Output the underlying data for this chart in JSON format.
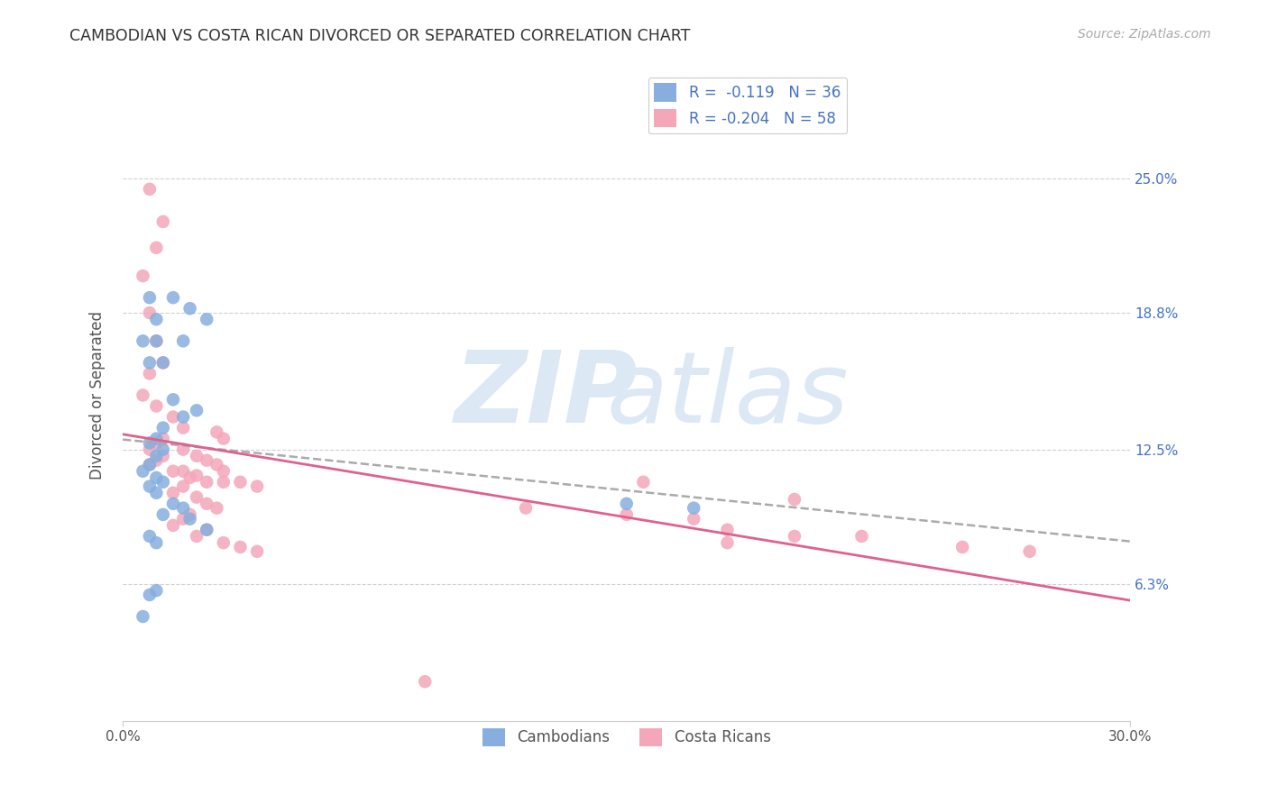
{
  "title": "CAMBODIAN VS COSTA RICAN DIVORCED OR SEPARATED CORRELATION CHART",
  "source": "Source: ZipAtlas.com",
  "ylabel": "Divorced or Separated",
  "xlim": [
    0.0,
    0.3
  ],
  "ylim": [
    0.0,
    0.3
  ],
  "ytick_labels": [
    "6.3%",
    "12.5%",
    "18.8%",
    "25.0%"
  ],
  "ytick_vals": [
    0.063,
    0.125,
    0.188,
    0.25
  ],
  "grid_color": "#cccccc",
  "background_color": "#ffffff",
  "legend_R1": "R =  -0.119",
  "legend_N1": "N = 36",
  "legend_R2": "R = -0.204",
  "legend_N2": "N = 58",
  "blue_color": "#87AEDE",
  "pink_color": "#F4A7B9",
  "blue_line_color": "#4472C4",
  "pink_line_color": "#E06090",
  "cambodian_x": [
    0.01,
    0.02,
    0.015,
    0.025,
    0.018,
    0.012,
    0.008,
    0.01,
    0.006,
    0.008,
    0.015,
    0.022,
    0.018,
    0.012,
    0.01,
    0.008,
    0.012,
    0.01,
    0.008,
    0.006,
    0.01,
    0.012,
    0.008,
    0.01,
    0.015,
    0.018,
    0.012,
    0.02,
    0.025,
    0.008,
    0.01,
    0.15,
    0.17,
    0.01,
    0.008,
    0.006
  ],
  "cambodian_y": [
    0.175,
    0.19,
    0.195,
    0.185,
    0.175,
    0.165,
    0.195,
    0.185,
    0.175,
    0.165,
    0.148,
    0.143,
    0.14,
    0.135,
    0.13,
    0.128,
    0.125,
    0.122,
    0.118,
    0.115,
    0.112,
    0.11,
    0.108,
    0.105,
    0.1,
    0.098,
    0.095,
    0.093,
    0.088,
    0.085,
    0.082,
    0.1,
    0.098,
    0.06,
    0.058,
    0.048
  ],
  "costarican_x": [
    0.008,
    0.012,
    0.01,
    0.006,
    0.008,
    0.01,
    0.012,
    0.008,
    0.006,
    0.01,
    0.015,
    0.018,
    0.012,
    0.01,
    0.008,
    0.012,
    0.01,
    0.008,
    0.015,
    0.018,
    0.022,
    0.02,
    0.025,
    0.018,
    0.015,
    0.022,
    0.025,
    0.028,
    0.02,
    0.018,
    0.015,
    0.025,
    0.022,
    0.028,
    0.03,
    0.018,
    0.022,
    0.025,
    0.028,
    0.03,
    0.035,
    0.04,
    0.12,
    0.15,
    0.17,
    0.18,
    0.2,
    0.22,
    0.25,
    0.27,
    0.18,
    0.2,
    0.155,
    0.03,
    0.035,
    0.04,
    0.03,
    0.09
  ],
  "costarican_y": [
    0.245,
    0.23,
    0.218,
    0.205,
    0.188,
    0.175,
    0.165,
    0.16,
    0.15,
    0.145,
    0.14,
    0.135,
    0.13,
    0.128,
    0.125,
    0.122,
    0.12,
    0.118,
    0.115,
    0.115,
    0.113,
    0.112,
    0.11,
    0.108,
    0.105,
    0.103,
    0.1,
    0.098,
    0.095,
    0.093,
    0.09,
    0.088,
    0.085,
    0.133,
    0.13,
    0.125,
    0.122,
    0.12,
    0.118,
    0.115,
    0.11,
    0.108,
    0.098,
    0.095,
    0.093,
    0.088,
    0.102,
    0.085,
    0.08,
    0.078,
    0.082,
    0.085,
    0.11,
    0.082,
    0.08,
    0.078,
    0.11,
    0.018
  ]
}
